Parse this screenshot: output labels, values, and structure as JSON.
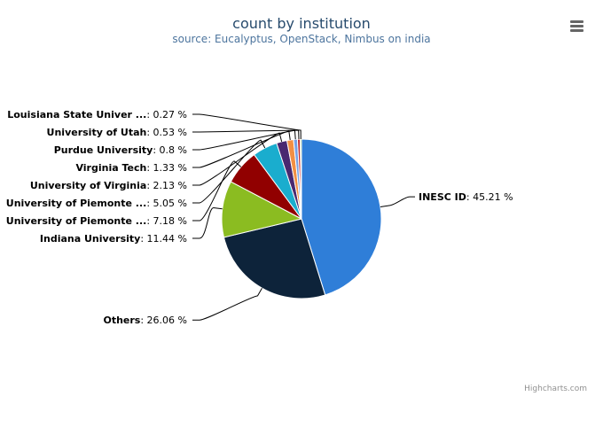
{
  "chart_data": {
    "type": "pie",
    "title": "count by institution",
    "subtitle": "source: Eucalyptus, OpenStack, Nimbus on india",
    "slices": [
      {
        "name": "INESC ID",
        "label": "INESC ID",
        "value": 45.21,
        "color": "#2f7ed8"
      },
      {
        "name": "Others",
        "label": "Others",
        "value": 26.06,
        "color": "#0d233a"
      },
      {
        "name": "Indiana University",
        "label": "Indiana University",
        "value": 11.44,
        "color": "#8bbc21"
      },
      {
        "name": "University of Piemonte",
        "label": "University of Piemonte ...",
        "value": 7.18,
        "color": "#910000"
      },
      {
        "name": "University of Piemonte",
        "label": "University of Piemonte ...",
        "value": 5.05,
        "color": "#1aadce"
      },
      {
        "name": "University of Virginia",
        "label": "University of Virginia",
        "value": 2.13,
        "color": "#492970"
      },
      {
        "name": "Virginia Tech",
        "label": "Virginia Tech",
        "value": 1.33,
        "color": "#f28f43"
      },
      {
        "name": "Purdue University",
        "label": "Purdue University",
        "value": 0.8,
        "color": "#77a1e5"
      },
      {
        "name": "University of Utah",
        "label": "University of Utah",
        "value": 0.53,
        "color": "#c42525"
      },
      {
        "name": "Louisiana State University",
        "label": "Louisiana State Univer ...",
        "value": 0.27,
        "color": "#a6c96a"
      }
    ],
    "value_suffix": " %",
    "legend": "none"
  },
  "credits": "Highcharts.com",
  "menu_icon": "hamburger-menu-icon"
}
